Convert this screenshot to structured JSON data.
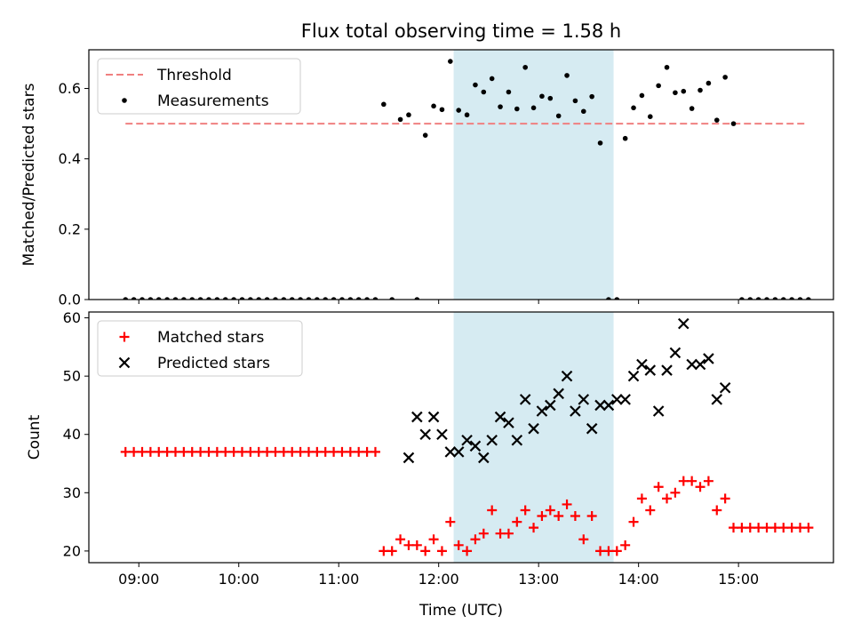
{
  "chart_data": [
    {
      "type": "scatter",
      "title": "Flux total observing time = 1.58 h",
      "ylabel": "Matched/Predicted stars",
      "xlabel": "",
      "xlim": [
        "08:30",
        "15:57"
      ],
      "ylim": [
        0,
        0.71
      ],
      "yticks": [
        0.0,
        0.2,
        0.4,
        0.6
      ],
      "ytick_labels": [
        "0.0",
        "0.2",
        "0.4",
        "0.6"
      ],
      "xticks": [
        "09:00",
        "10:00",
        "11:00",
        "12:00",
        "13:00",
        "14:00",
        "15:00"
      ],
      "xtick_labels_shown": false,
      "shaded_interval": [
        "12:09",
        "13:45"
      ],
      "shaded_color": "#add8e6",
      "legend": {
        "placement": "top-left",
        "entries": [
          "Threshold",
          "Measurements"
        ]
      },
      "threshold": {
        "name": "Threshold",
        "value": 0.5,
        "x_range": [
          "08:52",
          "15:40"
        ],
        "color": "#f08080",
        "style": "dashed"
      },
      "series": [
        {
          "name": "Measurements",
          "marker": "dot",
          "color": "#000000",
          "x": [
            "08:52",
            "08:57",
            "09:02",
            "09:07",
            "09:12",
            "09:17",
            "09:22",
            "09:27",
            "09:32",
            "09:37",
            "09:42",
            "09:47",
            "09:52",
            "09:57",
            "10:02",
            "10:07",
            "10:12",
            "10:17",
            "10:22",
            "10:27",
            "10:32",
            "10:37",
            "10:42",
            "10:47",
            "10:52",
            "10:57",
            "11:02",
            "11:07",
            "11:12",
            "11:17",
            "11:22",
            "11:27",
            "11:32",
            "11:37",
            "11:42",
            "11:47",
            "11:52",
            "11:57",
            "12:02",
            "12:07",
            "12:12",
            "12:17",
            "12:22",
            "12:27",
            "12:32",
            "12:37",
            "12:42",
            "12:47",
            "12:52",
            "12:57",
            "13:02",
            "13:07",
            "13:12",
            "13:17",
            "13:22",
            "13:27",
            "13:32",
            "13:37",
            "13:42",
            "13:47",
            "13:52",
            "13:57",
            "14:02",
            "14:07",
            "14:12",
            "14:17",
            "14:22",
            "14:27",
            "14:32",
            "14:37",
            "14:42",
            "14:47",
            "14:52",
            "14:57",
            "15:02",
            "15:07",
            "15:12",
            "15:17",
            "15:22",
            "15:27",
            "15:32",
            "15:37",
            "15:42"
          ],
          "y": [
            0,
            0,
            0,
            0,
            0,
            0,
            0,
            0,
            0,
            0,
            0,
            0,
            0,
            0,
            0,
            0,
            0,
            0,
            0,
            0,
            0,
            0,
            0,
            0,
            0,
            0,
            0,
            0,
            0,
            0,
            0,
            0.555,
            0,
            0.512,
            0.525,
            0,
            0.467,
            0.55,
            0.54,
            0.677,
            0.538,
            0.525,
            0.61,
            0.59,
            0.628,
            0.548,
            0.59,
            0.542,
            0.66,
            0.545,
            0.578,
            0.572,
            0.522,
            0.637,
            0.565,
            0.535,
            0.577,
            0.445,
            0,
            0,
            0.458,
            0.545,
            0.58,
            0.52,
            0.608,
            0.66,
            0.588,
            0.592,
            0.543,
            0.595,
            0.615,
            0.51,
            0.632,
            0.5,
            0,
            0,
            0,
            0,
            0,
            0,
            0,
            0,
            0
          ]
        }
      ]
    },
    {
      "type": "scatter",
      "title": "",
      "ylabel": "Count",
      "xlabel": "Time (UTC)",
      "xlim": [
        "08:30",
        "15:57"
      ],
      "ylim": [
        18,
        61
      ],
      "yticks": [
        20,
        30,
        40,
        50,
        60
      ],
      "ytick_labels": [
        "20",
        "30",
        "40",
        "50",
        "60"
      ],
      "xticks": [
        "09:00",
        "10:00",
        "11:00",
        "12:00",
        "13:00",
        "14:00",
        "15:00"
      ],
      "xtick_labels": [
        "09:00",
        "10:00",
        "11:00",
        "12:00",
        "13:00",
        "14:00",
        "15:00"
      ],
      "shaded_interval": [
        "12:09",
        "13:45"
      ],
      "shaded_color": "#add8e6",
      "legend": {
        "placement": "top-left",
        "entries": [
          "Matched stars",
          "Predicted stars"
        ]
      },
      "series": [
        {
          "name": "Matched stars",
          "marker": "plus",
          "color": "#ff0000",
          "x": [
            "08:52",
            "08:57",
            "09:02",
            "09:07",
            "09:12",
            "09:17",
            "09:22",
            "09:27",
            "09:32",
            "09:37",
            "09:42",
            "09:47",
            "09:52",
            "09:57",
            "10:02",
            "10:07",
            "10:12",
            "10:17",
            "10:22",
            "10:27",
            "10:32",
            "10:37",
            "10:42",
            "10:47",
            "10:52",
            "10:57",
            "11:02",
            "11:07",
            "11:12",
            "11:17",
            "11:22",
            "11:27",
            "11:32",
            "11:37",
            "11:42",
            "11:47",
            "11:52",
            "11:57",
            "12:02",
            "12:07",
            "12:12",
            "12:17",
            "12:22",
            "12:27",
            "12:32",
            "12:37",
            "12:42",
            "12:47",
            "12:52",
            "12:57",
            "13:02",
            "13:07",
            "13:12",
            "13:17",
            "13:22",
            "13:27",
            "13:32",
            "13:37",
            "13:42",
            "13:47",
            "13:52",
            "13:57",
            "14:02",
            "14:07",
            "14:12",
            "14:17",
            "14:22",
            "14:27",
            "14:32",
            "14:37",
            "14:42",
            "14:47",
            "14:52",
            "14:57",
            "15:02",
            "15:07",
            "15:12",
            "15:17",
            "15:22",
            "15:27",
            "15:32",
            "15:37",
            "15:42"
          ],
          "y": [
            37,
            37,
            37,
            37,
            37,
            37,
            37,
            37,
            37,
            37,
            37,
            37,
            37,
            37,
            37,
            37,
            37,
            37,
            37,
            37,
            37,
            37,
            37,
            37,
            37,
            37,
            37,
            37,
            37,
            37,
            37,
            20,
            20,
            22,
            21,
            21,
            20,
            22,
            20,
            25,
            21,
            20,
            22,
            23,
            27,
            23,
            23,
            25,
            27,
            24,
            26,
            27,
            26,
            28,
            26,
            22,
            26,
            20,
            20,
            20,
            21,
            25,
            29,
            27,
            31,
            29,
            30,
            32,
            32,
            31,
            32,
            27,
            29,
            24,
            24,
            24,
            24,
            24,
            24,
            24,
            24,
            24,
            24
          ]
        },
        {
          "name": "Predicted stars",
          "marker": "x",
          "color": "#000000",
          "x": [
            "11:42",
            "11:47",
            "11:52",
            "11:57",
            "12:02",
            "12:07",
            "12:12",
            "12:17",
            "12:22",
            "12:27",
            "12:32",
            "12:37",
            "12:42",
            "12:47",
            "12:52",
            "12:57",
            "13:02",
            "13:07",
            "13:12",
            "13:17",
            "13:22",
            "13:27",
            "13:32",
            "13:37",
            "13:42",
            "13:47",
            "13:52",
            "13:57",
            "14:02",
            "14:07",
            "14:12",
            "14:17",
            "14:22",
            "14:27",
            "14:32",
            "14:37",
            "14:42",
            "14:47",
            "14:52",
            "14:57",
            "15:02",
            "15:07",
            "15:12",
            "15:17"
          ],
          "y": [
            36,
            43,
            40,
            43,
            40,
            37,
            37,
            39,
            38,
            36,
            39,
            43,
            42,
            39,
            46,
            41,
            44,
            45,
            47,
            50,
            44,
            46,
            41,
            45,
            45,
            46,
            46,
            50,
            52,
            51,
            44,
            51,
            54,
            59,
            52,
            52,
            53,
            46,
            48,
            null,
            null,
            null,
            null,
            null
          ]
        }
      ]
    }
  ]
}
